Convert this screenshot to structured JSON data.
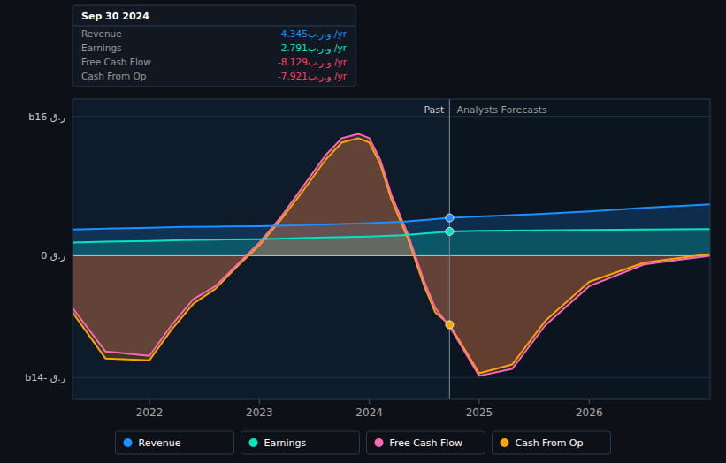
{
  "chart_data": {
    "type": "area",
    "xlim": [
      2021.3,
      2027.1
    ],
    "ylim": [
      -16.5,
      18.0
    ],
    "xticks": [
      2022,
      2023,
      2024,
      2025,
      2026
    ],
    "yticks": [
      {
        "value": 16,
        "label": "bر.ق 16"
      },
      {
        "value": 0,
        "label": "ر.ق 0"
      },
      {
        "value": -14,
        "label": "bر.ق -14"
      }
    ],
    "grid": true,
    "legend": "bottom",
    "series": [
      {
        "name": "Revenue",
        "color": "#1e90ff",
        "marker": "circle",
        "x": [
          2021.3,
          2021.6,
          2022.0,
          2022.3,
          2022.6,
          2023.0,
          2023.3,
          2023.6,
          2024.0,
          2024.3,
          2024.5,
          2024.73,
          2025.0,
          2025.5,
          2026.0,
          2026.5,
          2027.1
        ],
        "values": [
          3.0,
          3.1,
          3.2,
          3.3,
          3.35,
          3.4,
          3.5,
          3.6,
          3.75,
          3.9,
          4.1,
          4.345,
          4.5,
          4.75,
          5.1,
          5.5,
          5.9
        ]
      },
      {
        "name": "Earnings",
        "color": "#00e5c0",
        "marker": "circle",
        "x": [
          2021.3,
          2021.6,
          2022.0,
          2022.3,
          2022.6,
          2023.0,
          2023.3,
          2023.6,
          2024.0,
          2024.3,
          2024.5,
          2024.73,
          2025.0,
          2025.5,
          2026.0,
          2026.5,
          2027.1
        ],
        "values": [
          1.5,
          1.6,
          1.7,
          1.8,
          1.85,
          1.9,
          2.0,
          2.1,
          2.2,
          2.35,
          2.55,
          2.791,
          2.85,
          2.9,
          2.95,
          3.0,
          3.05
        ]
      },
      {
        "name": "Free Cash Flow",
        "color": "#ff69b4",
        "marker": "none",
        "x": [
          2021.3,
          2021.6,
          2022.0,
          2022.2,
          2022.4,
          2022.6,
          2022.8,
          2023.0,
          2023.2,
          2023.4,
          2023.6,
          2023.75,
          2023.9,
          2024.0,
          2024.1,
          2024.2,
          2024.35,
          2024.5,
          2024.6,
          2024.73,
          2025.0,
          2025.3,
          2025.6,
          2026.0,
          2026.5,
          2027.1
        ],
        "values": [
          -6.0,
          -11.0,
          -11.5,
          -8.0,
          -5.0,
          -3.5,
          -1.0,
          1.5,
          4.5,
          8.0,
          11.5,
          13.5,
          14.0,
          13.5,
          11.0,
          7.0,
          2.5,
          -3.0,
          -6.0,
          -8.129,
          -13.8,
          -13.0,
          -8.0,
          -3.5,
          -1.0,
          0.0
        ]
      },
      {
        "name": "Cash From Op",
        "color": "#ffa500",
        "marker": "circle",
        "x": [
          2021.3,
          2021.6,
          2022.0,
          2022.2,
          2022.4,
          2022.6,
          2022.8,
          2023.0,
          2023.2,
          2023.4,
          2023.6,
          2023.75,
          2023.9,
          2024.0,
          2024.1,
          2024.2,
          2024.35,
          2024.5,
          2024.6,
          2024.73,
          2025.0,
          2025.3,
          2025.6,
          2026.0,
          2026.5,
          2027.1
        ],
        "values": [
          -6.5,
          -11.8,
          -12.0,
          -8.5,
          -5.5,
          -3.8,
          -1.2,
          1.2,
          4.2,
          7.5,
          11.0,
          13.0,
          13.5,
          13.0,
          10.5,
          6.5,
          2.0,
          -3.5,
          -6.5,
          -7.921,
          -13.5,
          -12.5,
          -7.5,
          -3.0,
          -0.8,
          0.2
        ]
      }
    ],
    "annotations": {
      "past_line": {
        "x": 2024.73,
        "left_text": "Past",
        "right_text": "Analysts Forecasts"
      },
      "tooltip": {
        "title": "Sep 30 2024",
        "rows": [
          {
            "label": "Revenue",
            "value_label": "4.345و.ر.ب /yr",
            "color": "#1e90ff"
          },
          {
            "label": "Earnings",
            "value_label": "2.791و.ر.ب /yr",
            "color": "#00e5c0"
          },
          {
            "label": "Free Cash Flow",
            "value_label": "-8.129و.ر.ب /yr",
            "color": "#ff4466"
          },
          {
            "label": "Cash From Op",
            "value_label": "-7.921و.ر.ب /yr",
            "color": "#ff4466"
          }
        ]
      }
    }
  }
}
